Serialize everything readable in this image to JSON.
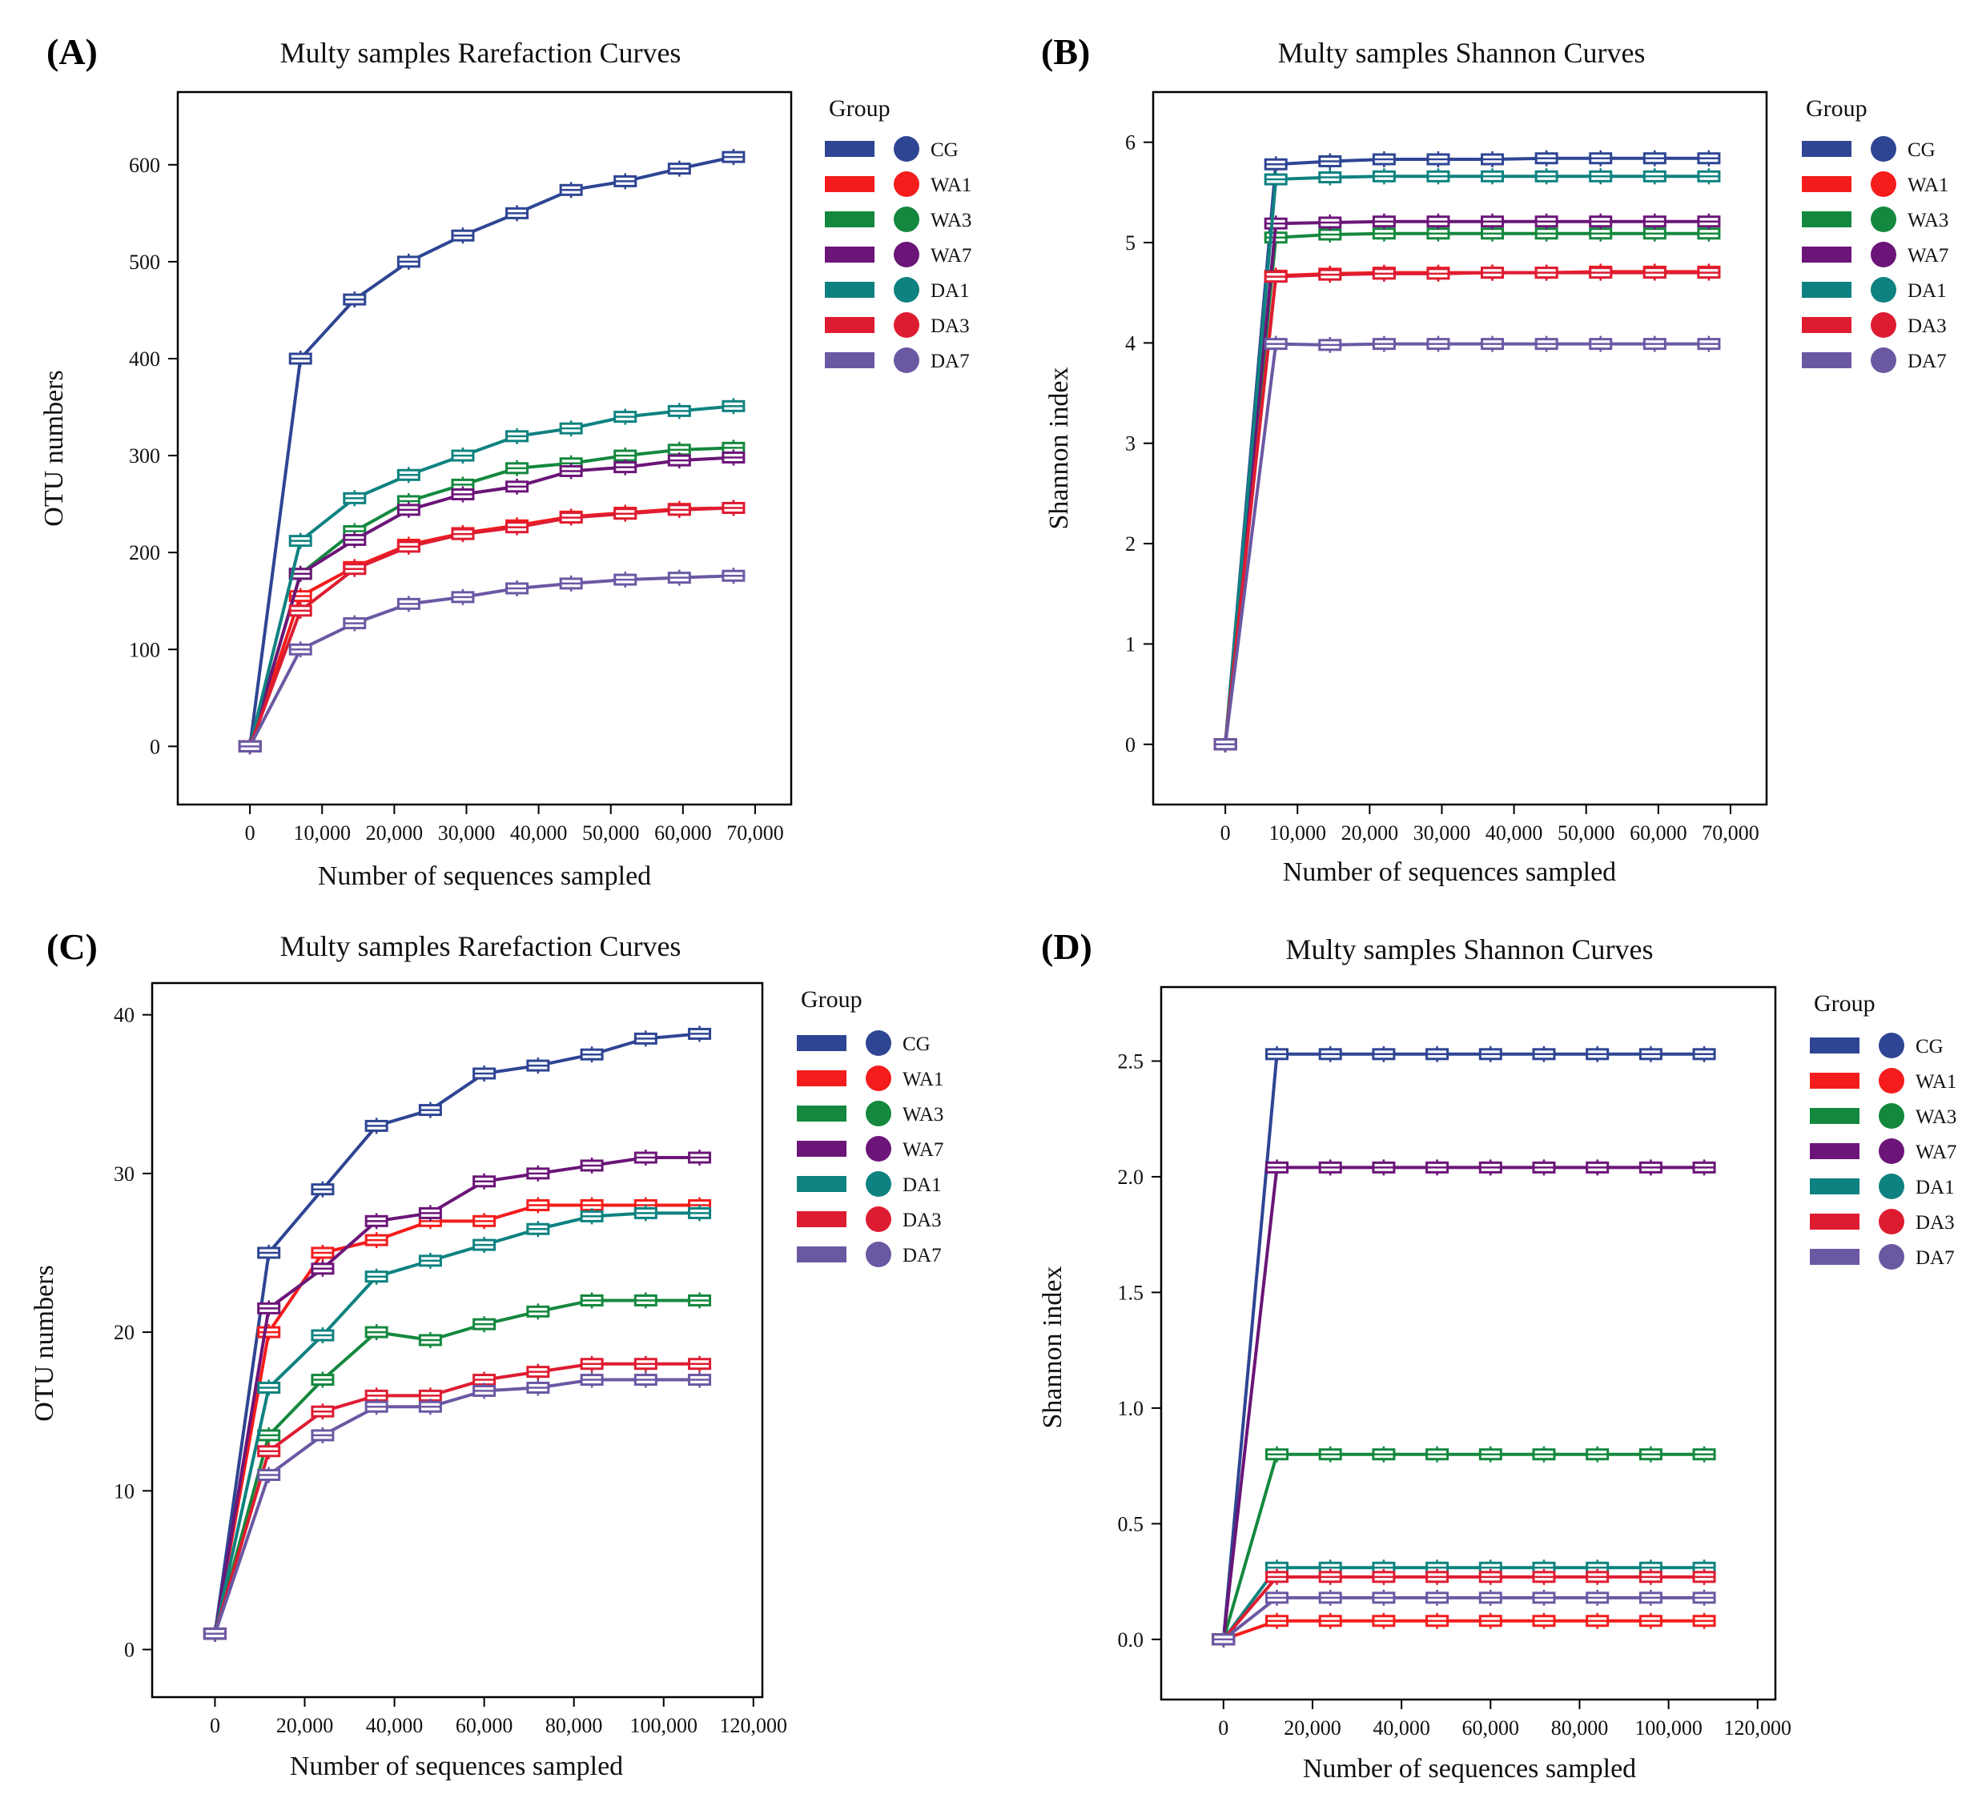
{
  "legend_colors": {
    "CG": "#2E4593",
    "WA1": "#F41C1C",
    "WA3": "#14883E",
    "WA7": "#6B1578",
    "DA1": "#0E8280",
    "DA3": "#DE1C31",
    "DA7": "#6B58A3"
  },
  "chart_data": [
    {
      "panel_label": "(A)",
      "type": "line",
      "title": "Multy samples Rarefaction Curves",
      "xlabel": "Number of sequences sampled",
      "ylabel": "OTU numbers",
      "xlim": [
        -10000,
        75000
      ],
      "ylim": [
        -60,
        675
      ],
      "xticks": [
        0,
        10000,
        20000,
        30000,
        40000,
        50000,
        60000,
        70000
      ],
      "xtick_labels": [
        "0",
        "10,000",
        "20,000",
        "30,000",
        "40,000",
        "50,000",
        "60,000",
        "70,000"
      ],
      "yticks": [
        0,
        100,
        200,
        300,
        400,
        500,
        600
      ],
      "ytick_labels": [
        "0",
        "100",
        "200",
        "300",
        "400",
        "500",
        "600"
      ],
      "legend_title": "Group",
      "legend_position": "right",
      "x": [
        0,
        7000,
        14500,
        22000,
        29500,
        37000,
        44500,
        52000,
        59500,
        67000
      ],
      "series": [
        {
          "name": "CG",
          "values": [
            0,
            400,
            461,
            500,
            527,
            550,
            574,
            583,
            596,
            608
          ]
        },
        {
          "name": "WA1",
          "values": [
            0,
            155,
            185,
            208,
            220,
            228,
            237,
            241,
            245,
            246
          ]
        },
        {
          "name": "WA3",
          "values": [
            0,
            178,
            222,
            253,
            270,
            287,
            292,
            300,
            306,
            308
          ]
        },
        {
          "name": "WA7",
          "values": [
            0,
            178,
            213,
            244,
            260,
            268,
            284,
            288,
            295,
            298
          ]
        },
        {
          "name": "DA1",
          "values": [
            0,
            212,
            256,
            280,
            300,
            320,
            328,
            340,
            346,
            351
          ]
        },
        {
          "name": "DA3",
          "values": [
            0,
            140,
            183,
            206,
            219,
            226,
            236,
            240,
            244,
            246
          ]
        },
        {
          "name": "DA7",
          "values": [
            0,
            100,
            127,
            147,
            154,
            163,
            168,
            172,
            174,
            176
          ]
        }
      ]
    },
    {
      "panel_label": "(B)",
      "type": "line",
      "title": "Multy samples Shannon Curves",
      "xlabel": "Number of sequences sampled",
      "ylabel": "Shannon index",
      "xlim": [
        -10000,
        75000
      ],
      "ylim": [
        -0.6,
        6.5
      ],
      "xticks": [
        0,
        10000,
        20000,
        30000,
        40000,
        50000,
        60000,
        70000
      ],
      "xtick_labels": [
        "0",
        "10,000",
        "20,000",
        "30,000",
        "40,000",
        "50,000",
        "60,000",
        "70,000"
      ],
      "yticks": [
        0,
        1,
        2,
        3,
        4,
        5,
        6
      ],
      "ytick_labels": [
        "0",
        "1",
        "2",
        "3",
        "4",
        "5",
        "6"
      ],
      "legend_title": "Group",
      "legend_position": "right",
      "x": [
        0,
        7000,
        14500,
        22000,
        29500,
        37000,
        44500,
        52000,
        59500,
        67000
      ],
      "series": [
        {
          "name": "CG",
          "values": [
            0,
            5.78,
            5.81,
            5.83,
            5.83,
            5.83,
            5.84,
            5.84,
            5.84,
            5.84
          ]
        },
        {
          "name": "WA1",
          "values": [
            0,
            4.67,
            4.69,
            4.7,
            4.7,
            4.7,
            4.7,
            4.71,
            4.71,
            4.71
          ]
        },
        {
          "name": "WA3",
          "values": [
            0,
            5.05,
            5.08,
            5.09,
            5.09,
            5.09,
            5.09,
            5.09,
            5.09,
            5.09
          ]
        },
        {
          "name": "WA7",
          "values": [
            0,
            5.19,
            5.2,
            5.21,
            5.21,
            5.21,
            5.21,
            5.21,
            5.21,
            5.21
          ]
        },
        {
          "name": "DA1",
          "values": [
            0,
            5.63,
            5.65,
            5.66,
            5.66,
            5.66,
            5.66,
            5.66,
            5.66,
            5.66
          ]
        },
        {
          "name": "DA3",
          "values": [
            0,
            4.66,
            4.68,
            4.69,
            4.69,
            4.7,
            4.7,
            4.7,
            4.7,
            4.7
          ]
        },
        {
          "name": "DA7",
          "values": [
            0,
            3.99,
            3.98,
            3.99,
            3.99,
            3.99,
            3.99,
            3.99,
            3.99,
            3.99
          ]
        }
      ]
    },
    {
      "panel_label": "(C)",
      "type": "line",
      "title": "Multy samples Rarefaction Curves",
      "xlabel": "Number of sequences sampled",
      "ylabel": "OTU numbers",
      "xlim": [
        -14000,
        122000
      ],
      "ylim": [
        -3,
        42
      ],
      "xticks": [
        0,
        20000,
        40000,
        60000,
        80000,
        100000,
        120000
      ],
      "xtick_labels": [
        "0",
        "20,000",
        "40,000",
        "60,000",
        "80,000",
        "100,000",
        "120,000"
      ],
      "yticks": [
        0,
        10,
        20,
        30,
        40
      ],
      "ytick_labels": [
        "0",
        "10",
        "20",
        "30",
        "40"
      ],
      "legend_title": "Group",
      "legend_position": "right",
      "x": [
        0,
        12000,
        24000,
        36000,
        48000,
        60000,
        72000,
        84000,
        96000,
        108000
      ],
      "series": [
        {
          "name": "CG",
          "values": [
            1,
            25,
            29,
            33,
            34,
            36.3,
            36.8,
            37.5,
            38.5,
            38.8
          ]
        },
        {
          "name": "WA1",
          "values": [
            1,
            20,
            25,
            25.8,
            27,
            27,
            28,
            28,
            28,
            28
          ]
        },
        {
          "name": "WA3",
          "values": [
            1,
            13.5,
            17,
            20,
            19.5,
            20.5,
            21.3,
            22,
            22,
            22
          ]
        },
        {
          "name": "WA7",
          "values": [
            1,
            21.5,
            24,
            27,
            27.5,
            29.5,
            30,
            30.5,
            31,
            31
          ]
        },
        {
          "name": "DA1",
          "values": [
            1,
            16.5,
            19.8,
            23.5,
            24.5,
            25.5,
            26.5,
            27.3,
            27.5,
            27.5
          ]
        },
        {
          "name": "DA3",
          "values": [
            1,
            12.5,
            15,
            16,
            16,
            17,
            17.5,
            18,
            18,
            18
          ]
        },
        {
          "name": "DA7",
          "values": [
            1,
            11,
            13.5,
            15.3,
            15.3,
            16.3,
            16.5,
            17,
            17,
            17
          ]
        }
      ]
    },
    {
      "panel_label": "(D)",
      "type": "line",
      "title": "Multy samples Shannon Curves",
      "xlabel": "Number of sequences sampled",
      "ylabel": "Shannon index",
      "xlim": [
        -14000,
        124000
      ],
      "ylim": [
        -0.26,
        2.82
      ],
      "xticks": [
        0,
        20000,
        40000,
        60000,
        80000,
        100000,
        120000
      ],
      "xtick_labels": [
        "0",
        "20,000",
        "40,000",
        "60,000",
        "80,000",
        "100,000",
        "120,000"
      ],
      "yticks": [
        0,
        0.5,
        1,
        1.5,
        2,
        2.5
      ],
      "ytick_labels": [
        "0.0",
        "0.5",
        "1.0",
        "1.5",
        "2.0",
        "2.5"
      ],
      "legend_title": "Group",
      "legend_position": "right",
      "x": [
        0,
        12000,
        24000,
        36000,
        48000,
        60000,
        72000,
        84000,
        96000,
        108000
      ],
      "series": [
        {
          "name": "CG",
          "values": [
            0,
            2.53,
            2.53,
            2.53,
            2.53,
            2.53,
            2.53,
            2.53,
            2.53,
            2.53
          ]
        },
        {
          "name": "WA1",
          "values": [
            0,
            0.08,
            0.08,
            0.08,
            0.08,
            0.08,
            0.08,
            0.08,
            0.08,
            0.08
          ]
        },
        {
          "name": "WA3",
          "values": [
            0,
            0.8,
            0.8,
            0.8,
            0.8,
            0.8,
            0.8,
            0.8,
            0.8,
            0.8
          ]
        },
        {
          "name": "WA7",
          "values": [
            0,
            2.04,
            2.04,
            2.04,
            2.04,
            2.04,
            2.04,
            2.04,
            2.04,
            2.04
          ]
        },
        {
          "name": "DA1",
          "values": [
            0,
            0.31,
            0.31,
            0.31,
            0.31,
            0.31,
            0.31,
            0.31,
            0.31,
            0.31
          ]
        },
        {
          "name": "DA3",
          "values": [
            0,
            0.27,
            0.27,
            0.27,
            0.27,
            0.27,
            0.27,
            0.27,
            0.27,
            0.27
          ]
        },
        {
          "name": "DA7",
          "values": [
            0,
            0.18,
            0.18,
            0.18,
            0.18,
            0.18,
            0.18,
            0.18,
            0.18,
            0.18
          ]
        }
      ]
    }
  ]
}
